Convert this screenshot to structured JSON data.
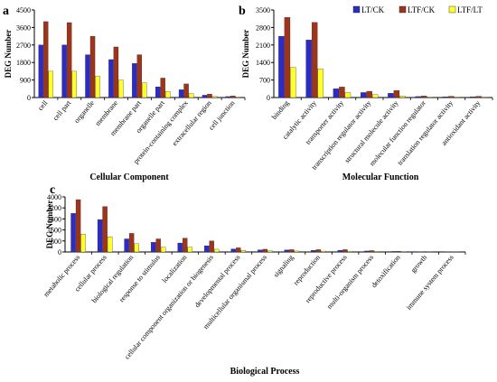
{
  "colors": {
    "LT/CK": "#2b2bc7",
    "LTF/CK": "#a0341a",
    "LTF/LT": "#ffff2e",
    "accent_magenta": "#ff3fd0"
  },
  "legend": {
    "entries": [
      "LT/CK",
      "LTF/CK",
      "LTF/LT"
    ],
    "placement": "top-right of panel b"
  },
  "chart_data": [
    {
      "type": "bar",
      "panel_label": "a",
      "ylabel": "DEG Number",
      "xlabel": "Cellular Component",
      "ylim": [
        0,
        4500
      ],
      "yticks": [
        0,
        900,
        1800,
        2700,
        3600,
        4500
      ],
      "categories": [
        "cell",
        "cell part",
        "organelle",
        "membrane",
        "membrane part",
        "organelle part",
        "protein-containing complex",
        "extracellular region",
        "cell junction"
      ],
      "series": [
        {
          "name": "LT/CK",
          "values": [
            2700,
            2700,
            2200,
            1950,
            1750,
            550,
            400,
            120,
            50
          ]
        },
        {
          "name": "LTF/CK",
          "values": [
            3900,
            3850,
            3150,
            2600,
            2200,
            1000,
            700,
            180,
            80
          ]
        },
        {
          "name": "LTF/LT",
          "values": [
            1350,
            1350,
            1100,
            900,
            750,
            320,
            200,
            60,
            30
          ]
        }
      ]
    },
    {
      "type": "bar",
      "panel_label": "b",
      "ylabel": "DEG Number",
      "xlabel": "Molecular Function",
      "ylim": [
        0,
        3500
      ],
      "yticks": [
        0,
        700,
        1400,
        2100,
        2800,
        3500
      ],
      "categories": [
        "binding",
        "catalytic activity",
        "transporter activity",
        "transcription regulator activity",
        "structural molecule activity",
        "molecular function regulator",
        "translation regulator activity",
        "antioxidant activity"
      ],
      "series": [
        {
          "name": "LT/CK",
          "values": [
            2450,
            2300,
            350,
            200,
            170,
            40,
            30,
            30
          ]
        },
        {
          "name": "LTF/CK",
          "values": [
            3200,
            3000,
            420,
            250,
            280,
            60,
            50,
            50
          ]
        },
        {
          "name": "LTF/LT",
          "values": [
            1200,
            1150,
            200,
            120,
            60,
            20,
            20,
            20
          ]
        }
      ]
    },
    {
      "type": "bar",
      "panel_label": "c",
      "ylabel": "DEG Number",
      "xlabel": "Biological Process",
      "ylim": [
        0,
        4000
      ],
      "yticks": [
        0,
        800,
        1600,
        2400,
        3200,
        4000
      ],
      "categories": [
        "metabolic process",
        "cellular process",
        "biological regulation",
        "response to stimulus",
        "localization",
        "cellular component organization or biogenesis",
        "developmental process",
        "multicellular organismal process",
        "signaling",
        "reproduction",
        "reproductive process",
        "multi-organism process",
        "detoxification",
        "growth",
        "immune system process"
      ],
      "series": [
        {
          "name": "LT/CK",
          "values": [
            2800,
            2350,
            950,
            700,
            650,
            450,
            220,
            150,
            150,
            120,
            120,
            70,
            40,
            20,
            10
          ]
        },
        {
          "name": "LTF/CK",
          "values": [
            3800,
            3300,
            1350,
            950,
            1000,
            800,
            300,
            200,
            170,
            170,
            170,
            100,
            50,
            30,
            20
          ]
        },
        {
          "name": "LTF/LT",
          "values": [
            1300,
            1100,
            600,
            350,
            350,
            200,
            120,
            80,
            70,
            60,
            60,
            40,
            20,
            10,
            10
          ]
        }
      ]
    }
  ]
}
